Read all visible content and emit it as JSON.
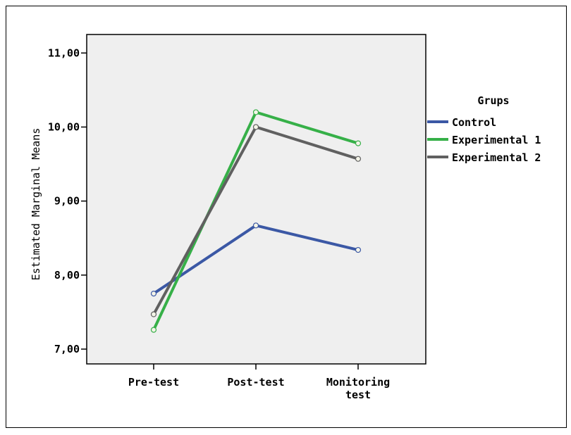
{
  "chart_data": {
    "type": "line",
    "title": "",
    "xlabel": "",
    "ylabel": "Estimated Marginal Means",
    "categories": [
      "Pre-test",
      "Post-test",
      "Monitoring test"
    ],
    "category_lines": [
      [
        "Pre-test"
      ],
      [
        "Post-test"
      ],
      [
        "Monitoring",
        "test"
      ]
    ],
    "ylim": [
      6.8,
      11.25
    ],
    "yticks": [
      7,
      8,
      9,
      10,
      11
    ],
    "ytick_labels": [
      "7,00",
      "8,00",
      "9,00",
      "10,00",
      "11,00"
    ],
    "grid": false,
    "legend": {
      "title": "Grups",
      "position": "right"
    },
    "series": [
      {
        "name": "Control",
        "color": "#3b58a5",
        "values": [
          7.75,
          8.67,
          8.34
        ]
      },
      {
        "name": "Experimental 1",
        "color": "#36b048",
        "values": [
          7.26,
          10.2,
          9.78
        ]
      },
      {
        "name": "Experimental 2",
        "color": "#606060",
        "values": [
          7.47,
          10.0,
          9.57
        ]
      }
    ]
  }
}
